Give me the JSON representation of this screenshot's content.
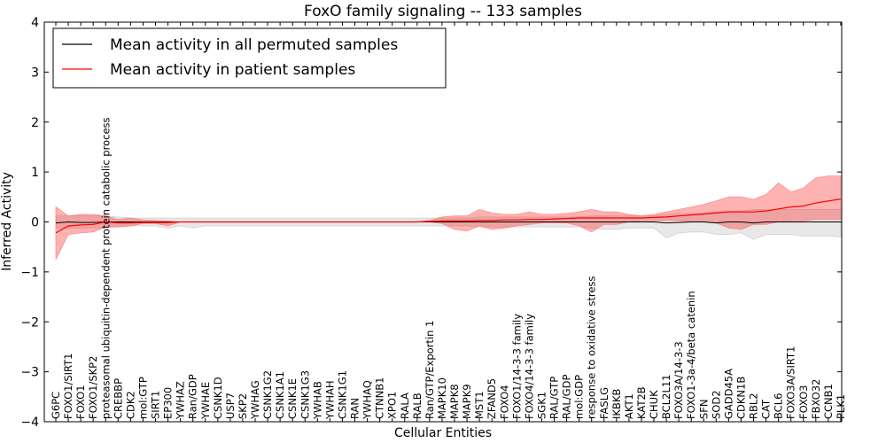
{
  "chart_data": {
    "type": "line",
    "title": "FoxO family signaling -- 133 samples",
    "xlabel": "Cellular Entities",
    "ylabel": "Inferred Activity",
    "ylim": [
      -4,
      4
    ],
    "yticks": [
      "−4",
      "−3",
      "−2",
      "−1",
      "0",
      "1",
      "2",
      "3",
      "4"
    ],
    "legend": {
      "location": "top-left",
      "entries": [
        {
          "name": "Mean activity in all permuted samples",
          "color": "#000000"
        },
        {
          "name": "Mean activity in patient samples",
          "color": "#ff0000"
        }
      ]
    },
    "categories": [
      "G6PC",
      "FOXO1/SIRT1",
      "FOXO1",
      "FOXO1/SKP2",
      "proteasomal ubiquitin-dependent protein catabolic process",
      "CREBBP",
      "CDK2",
      "mol:GTP",
      "SIRT1",
      "EP300",
      "YWHAZ",
      "Ran/GDP",
      "YWHAE",
      "CSNK1D",
      "USP7",
      "SKP2",
      "YWHAG",
      "CSNK1G2",
      "CSNK1A1",
      "CSNK1E",
      "CSNK1G3",
      "YWHAB",
      "YWHAH",
      "CSNK1G1",
      "RAN",
      "YWHAQ",
      "CTNNB1",
      "XPO1",
      "RALA",
      "RALB",
      "Ran/GTP/Exportin 1",
      "MAPK10",
      "MAPK8",
      "MAPK9",
      "MST1",
      "ZFAND5",
      "FOXO4",
      "FOXO1/14-3-3 family",
      "FOXO4/14-3-3 family",
      "SGK1",
      "RAL/GTP",
      "RAL/GDP",
      "mol:GDP",
      "response to oxidative stress",
      "FASLG",
      "IKBKB",
      "AKT1",
      "KAT2B",
      "CHUK",
      "BCL2L11",
      "FOXO3A/14-3-3",
      "FOXO1-3a-4/beta catenin",
      "SFN",
      "SOD2",
      "GADD45A",
      "CDKN1B",
      "RBL2",
      "CAT",
      "BCL6",
      "FOXO3A/SIRT1",
      "FOXO3",
      "FBXO32",
      "CCNB1",
      "PLK1"
    ],
    "series": [
      {
        "name": "Mean activity in all permuted samples",
        "color": "#000000",
        "values": [
          -0.02,
          0.0,
          -0.01,
          -0.01,
          0.0,
          0.0,
          0.0,
          0.0,
          0.0,
          0.0,
          0.0,
          0.0,
          0.0,
          0.0,
          0.0,
          0.0,
          0.0,
          0.0,
          0.0,
          0.0,
          0.0,
          0.0,
          0.0,
          0.0,
          0.0,
          0.0,
          0.0,
          0.0,
          0.0,
          0.0,
          0.0,
          0.0,
          0.0,
          0.0,
          0.0,
          0.0,
          0.0,
          0.0,
          0.0,
          0.0,
          0.0,
          0.0,
          0.0,
          0.0,
          0.0,
          0.0,
          0.0,
          0.0,
          0.0,
          -0.02,
          -0.01,
          0.0,
          0.0,
          -0.02,
          0.0,
          0.0,
          -0.02,
          0.0,
          0.0,
          0.0,
          0.0,
          0.0,
          0.0,
          0.0
        ],
        "band_upper": [
          0.12,
          0.12,
          0.12,
          0.12,
          0.12,
          0.1,
          0.08,
          0.08,
          0.08,
          0.08,
          0.08,
          0.08,
          0.08,
          0.08,
          0.08,
          0.08,
          0.08,
          0.08,
          0.08,
          0.08,
          0.08,
          0.08,
          0.08,
          0.08,
          0.08,
          0.08,
          0.08,
          0.08,
          0.08,
          0.08,
          0.08,
          0.08,
          0.08,
          0.08,
          0.1,
          0.1,
          0.1,
          0.1,
          0.1,
          0.1,
          0.1,
          0.1,
          0.1,
          0.12,
          0.12,
          0.12,
          0.12,
          0.12,
          0.12,
          0.15,
          0.17,
          0.17,
          0.17,
          0.2,
          0.22,
          0.22,
          0.25,
          0.25,
          0.25,
          0.25,
          0.25,
          0.25,
          0.25,
          0.25
        ],
        "band_lower": [
          -0.12,
          -0.12,
          -0.12,
          -0.12,
          -0.12,
          -0.1,
          -0.08,
          -0.08,
          -0.08,
          -0.12,
          -0.08,
          -0.12,
          -0.08,
          -0.08,
          -0.08,
          -0.08,
          -0.08,
          -0.08,
          -0.08,
          -0.08,
          -0.08,
          -0.08,
          -0.08,
          -0.08,
          -0.08,
          -0.08,
          -0.08,
          -0.08,
          -0.08,
          -0.08,
          -0.08,
          -0.08,
          -0.08,
          -0.08,
          -0.1,
          -0.1,
          -0.1,
          -0.1,
          -0.1,
          -0.1,
          -0.1,
          -0.1,
          -0.1,
          -0.12,
          -0.15,
          -0.15,
          -0.12,
          -0.12,
          -0.12,
          -0.32,
          -0.22,
          -0.2,
          -0.2,
          -0.25,
          -0.25,
          -0.22,
          -0.35,
          -0.25,
          -0.25,
          -0.25,
          -0.28,
          -0.28,
          -0.28,
          -0.3
        ]
      },
      {
        "name": "Mean activity in patient samples",
        "color": "#ff0000",
        "values": [
          -0.22,
          -0.08,
          -0.06,
          -0.05,
          0.0,
          -0.02,
          -0.02,
          -0.01,
          -0.01,
          -0.01,
          0.0,
          0.0,
          0.0,
          0.0,
          0.0,
          0.0,
          0.0,
          0.0,
          0.0,
          0.0,
          0.0,
          0.0,
          0.0,
          0.0,
          0.0,
          0.0,
          0.0,
          0.0,
          0.0,
          0.0,
          0.01,
          0.02,
          0.02,
          0.02,
          0.03,
          0.03,
          0.04,
          0.04,
          0.05,
          0.05,
          0.06,
          0.07,
          0.08,
          0.08,
          0.08,
          0.08,
          0.08,
          0.08,
          0.09,
          0.1,
          0.12,
          0.14,
          0.16,
          0.18,
          0.2,
          0.2,
          0.2,
          0.22,
          0.26,
          0.3,
          0.32,
          0.38,
          0.42,
          0.46
        ],
        "band_upper": [
          0.3,
          0.12,
          0.15,
          0.15,
          0.12,
          0.05,
          0.08,
          0.04,
          0.03,
          0.02,
          0.0,
          0.0,
          0.0,
          0.0,
          0.0,
          0.0,
          0.0,
          0.0,
          0.0,
          0.0,
          0.0,
          0.0,
          0.0,
          0.0,
          0.0,
          0.0,
          0.0,
          0.0,
          0.0,
          0.0,
          0.03,
          0.1,
          0.12,
          0.12,
          0.25,
          0.18,
          0.15,
          0.15,
          0.2,
          0.15,
          0.15,
          0.17,
          0.2,
          0.25,
          0.2,
          0.2,
          0.15,
          0.12,
          0.15,
          0.2,
          0.25,
          0.3,
          0.35,
          0.42,
          0.5,
          0.5,
          0.45,
          0.55,
          0.78,
          0.6,
          0.68,
          0.88,
          0.92,
          0.92
        ],
        "band_lower": [
          -0.75,
          -0.25,
          -0.22,
          -0.2,
          -0.1,
          -0.1,
          -0.08,
          -0.03,
          -0.03,
          -0.08,
          0.0,
          0.0,
          0.0,
          0.0,
          0.0,
          0.0,
          0.0,
          0.0,
          0.0,
          0.0,
          0.0,
          0.0,
          0.0,
          0.0,
          0.0,
          0.0,
          0.0,
          0.0,
          0.0,
          0.0,
          0.0,
          -0.03,
          -0.15,
          -0.18,
          -0.08,
          -0.15,
          -0.12,
          -0.08,
          -0.05,
          -0.02,
          -0.02,
          -0.02,
          -0.08,
          -0.2,
          -0.05,
          -0.05,
          0.0,
          0.02,
          0.02,
          0.03,
          0.02,
          0.0,
          0.0,
          -0.02,
          -0.12,
          -0.15,
          -0.05,
          -0.05,
          0.0,
          0.02,
          0.02,
          0.05,
          0.05,
          0.05
        ]
      }
    ]
  }
}
